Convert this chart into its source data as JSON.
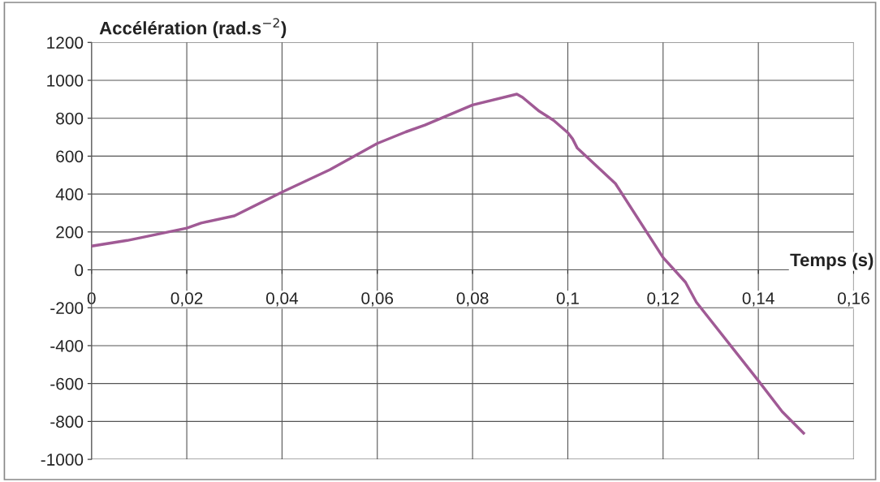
{
  "chart_data": {
    "type": "line",
    "ylabel": "Accélération (rad.s$^{−2}$)",
    "xlabel": "Temps (s)",
    "series": [
      {
        "color": "#a05a95",
        "x": [
          0,
          0.0075,
          0.02,
          0.023,
          0.03,
          0.04,
          0.05,
          0.06,
          0.066,
          0.07,
          0.08,
          0.0893,
          0.0905,
          0.094,
          0.097,
          0.1,
          0.101,
          0.102,
          0.11,
          0.12,
          0.1247,
          0.127,
          0.14,
          0.145,
          0.1495
        ],
        "values": [
          125,
          155,
          220,
          247,
          285,
          410,
          528,
          667,
          728,
          764,
          870,
          927,
          910,
          837,
          789,
          724,
          691,
          642,
          455,
          65,
          -65,
          -171,
          -585,
          -748,
          -862
        ]
      }
    ],
    "xlim": [
      0,
      0.16
    ],
    "xticks": [
      0,
      {
        "value": 0.02,
        "label": "0,02"
      },
      {
        "value": 0.04,
        "label": "0,04"
      },
      {
        "value": 0.06,
        "label": "0,06"
      },
      {
        "value": 0.08,
        "label": "0,08"
      },
      {
        "value": 0.1,
        "label": "0,1"
      },
      {
        "value": 0.12,
        "label": "0,12"
      },
      {
        "value": 0.14,
        "label": "0,14"
      },
      {
        "value": 0.16,
        "label": "0,16"
      }
    ],
    "ylim": [
      -1000,
      1200
    ],
    "yticks": [
      -1000,
      -800,
      -600,
      -400,
      -200,
      0,
      200,
      400,
      600,
      800,
      1000,
      1200
    ],
    "grid": true,
    "marker": "none",
    "line_style": "solid"
  }
}
